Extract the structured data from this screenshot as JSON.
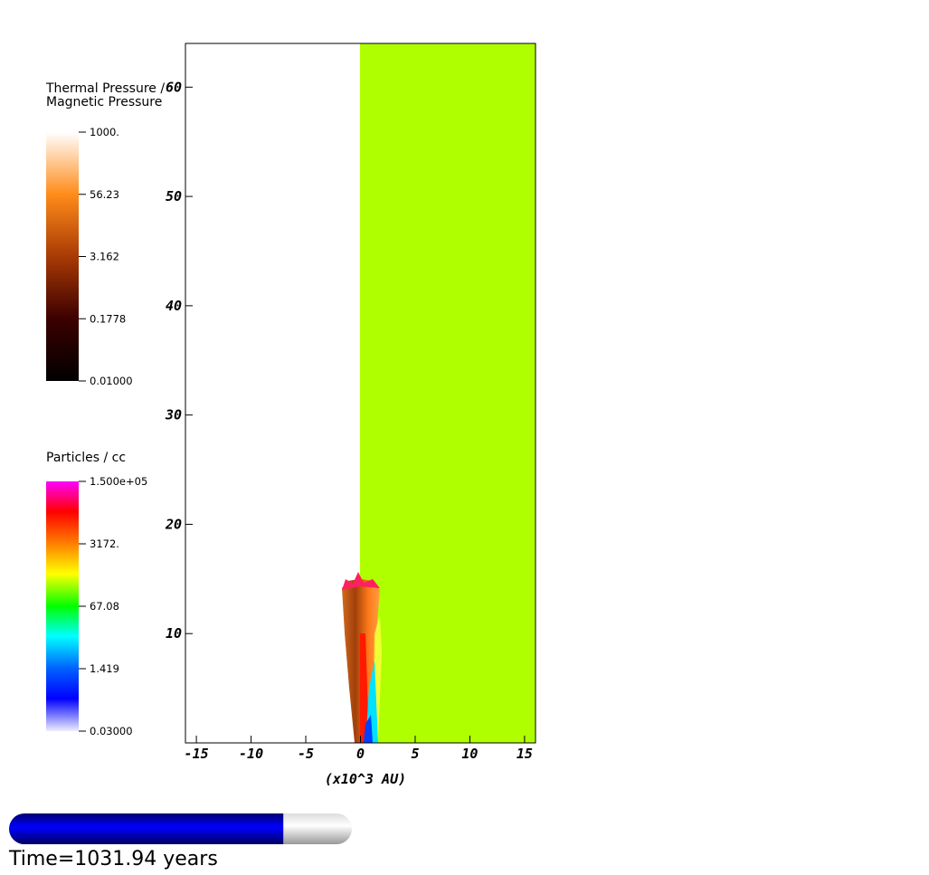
{
  "chart_data": {
    "type": "pseudocolor",
    "xlabel": "(x10^3 AU)",
    "xlim": [
      -16,
      16
    ],
    "ylim": [
      0,
      64
    ],
    "xticks": [
      -15,
      -10,
      -5,
      0,
      5,
      10,
      15
    ],
    "yticks": [
      10,
      20,
      30,
      40,
      50,
      60
    ],
    "legends": [
      {
        "title": [
          "Thermal Pressure /",
          "Magnetic Pressure"
        ],
        "scale": "log",
        "range": [
          0.01,
          1000
        ],
        "ticks": [
          {
            "value": 1000,
            "label": "1000."
          },
          {
            "value": 56.23,
            "label": "56.23"
          },
          {
            "value": 3.162,
            "label": "3.162"
          },
          {
            "value": 0.1778,
            "label": "0.1778"
          },
          {
            "value": 0.01,
            "label": "0.01000"
          }
        ]
      },
      {
        "title": [
          "Particles / cc"
        ],
        "scale": "log",
        "range": [
          0.03,
          150000
        ],
        "ticks": [
          {
            "value": 150000,
            "label": "1.500e+05"
          },
          {
            "value": 3172,
            "label": "3172."
          },
          {
            "value": 67.08,
            "label": "67.08"
          },
          {
            "value": 1.419,
            "label": "1.419"
          },
          {
            "value": 0.03,
            "label": "0.03000"
          }
        ]
      }
    ],
    "time_label": "Time=1031.94 years",
    "time_progress": 80
  }
}
